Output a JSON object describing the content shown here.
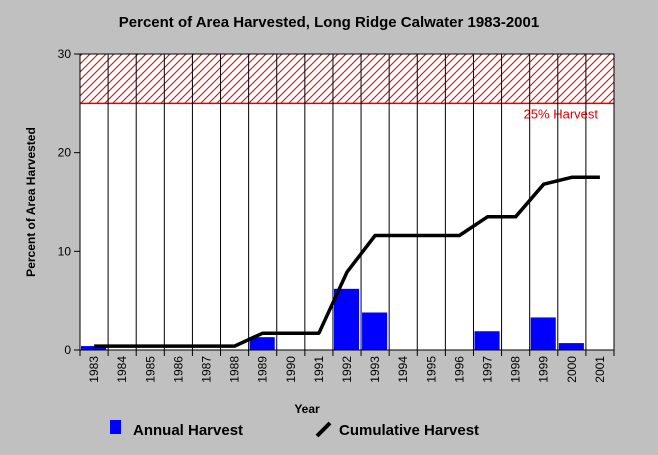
{
  "chart_data": {
    "type": "bar",
    "title": "Percent of Area Harvested, Long Ridge Calwater 1983-2001",
    "xlabel": "Year",
    "ylabel": "Percent of Area Harvested",
    "ylim": [
      0,
      30
    ],
    "yticks": [
      0,
      10,
      20,
      30
    ],
    "categories": [
      "1983",
      "1984",
      "1985",
      "1986",
      "1987",
      "1988",
      "1989",
      "1990",
      "1991",
      "1992",
      "1993",
      "1994",
      "1995",
      "1996",
      "1997",
      "1998",
      "1999",
      "2000",
      "2001"
    ],
    "series": [
      {
        "name": "Annual Harvest",
        "type": "bar",
        "color": "#0000ff",
        "values": [
          0.4,
          0,
          0,
          0,
          0,
          0,
          1.3,
          0,
          0,
          6.2,
          3.8,
          0,
          0,
          0,
          1.9,
          0,
          3.3,
          0.7,
          0
        ]
      },
      {
        "name": "Cumulative Harvest",
        "type": "line",
        "color": "#000000",
        "values": [
          0.4,
          0.4,
          0.4,
          0.4,
          0.4,
          0.4,
          1.7,
          1.7,
          1.7,
          7.9,
          11.6,
          11.6,
          11.6,
          11.6,
          13.5,
          13.5,
          16.8,
          17.5,
          17.5
        ]
      }
    ],
    "threshold_band": {
      "label": "25% Harvest",
      "from": 25,
      "to": 30,
      "color": "#e00000",
      "pattern": "diagonal-hatch"
    },
    "grid": "vertical",
    "legend_position": "bottom"
  }
}
